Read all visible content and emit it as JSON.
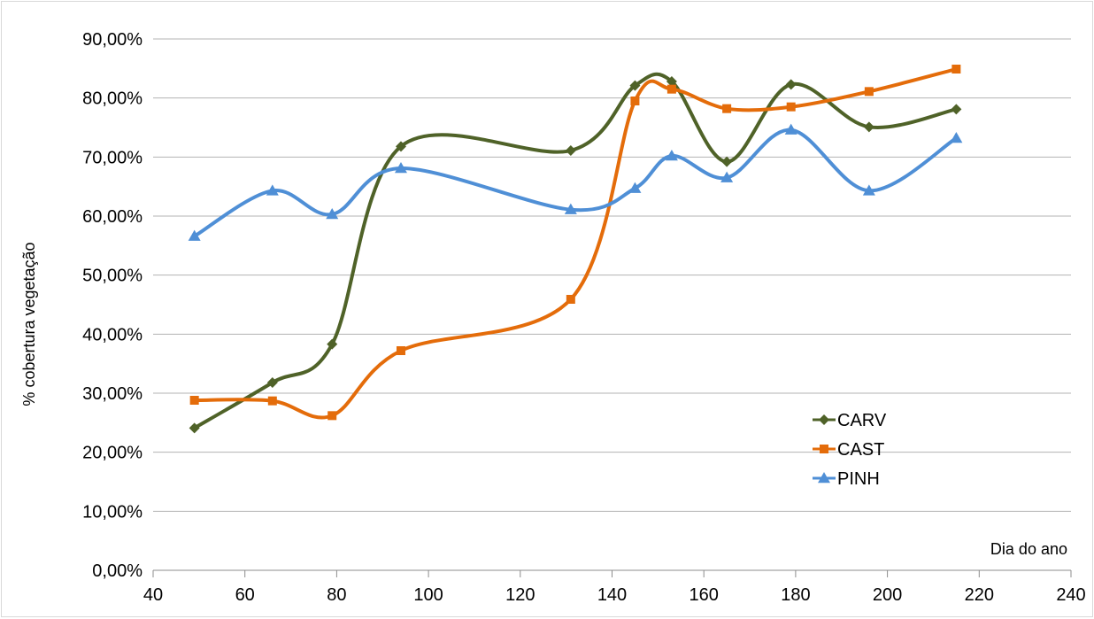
{
  "chart_data": {
    "type": "line",
    "smooth": true,
    "xlabel": "Dia do ano",
    "ylabel": "% cobertura vegetação",
    "xlim": [
      40,
      240
    ],
    "ylim": [
      0,
      0.9
    ],
    "x_ticks": [
      40,
      60,
      80,
      100,
      120,
      140,
      160,
      180,
      200,
      220,
      240
    ],
    "y_ticks": [
      0,
      0.1,
      0.2,
      0.3,
      0.4,
      0.5,
      0.6,
      0.7,
      0.8,
      0.9
    ],
    "y_tick_labels": [
      "0,00%",
      "10,00%",
      "20,00%",
      "30,00%",
      "40,00%",
      "50,00%",
      "60,00%",
      "70,00%",
      "80,00%",
      "90,00%"
    ],
    "x_tick_labels": [
      "40",
      "60",
      "80",
      "100",
      "120",
      "140",
      "160",
      "180",
      "200",
      "220",
      "240"
    ],
    "grid": "horizontal",
    "legend_position": "bottom-right",
    "series": [
      {
        "name": "CARV",
        "color": "#4f6228",
        "marker": "diamond",
        "points": [
          [
            49,
            0.241
          ],
          [
            66,
            0.318
          ],
          [
            79,
            0.383
          ],
          [
            94,
            0.718
          ],
          [
            131,
            0.711
          ],
          [
            145,
            0.821
          ],
          [
            153,
            0.828
          ],
          [
            165,
            0.692
          ],
          [
            179,
            0.823
          ],
          [
            196,
            0.751
          ],
          [
            215,
            0.781
          ]
        ]
      },
      {
        "name": "CAST",
        "color": "#e46c0a",
        "marker": "square",
        "points": [
          [
            49,
            0.288
          ],
          [
            66,
            0.287
          ],
          [
            79,
            0.262
          ],
          [
            94,
            0.372
          ],
          [
            131,
            0.459
          ],
          [
            145,
            0.795
          ],
          [
            153,
            0.815
          ],
          [
            165,
            0.782
          ],
          [
            179,
            0.785
          ],
          [
            196,
            0.811
          ],
          [
            215,
            0.849
          ]
        ]
      },
      {
        "name": "PINH",
        "color": "#4f8fd6",
        "marker": "triangle",
        "points": [
          [
            49,
            0.566
          ],
          [
            66,
            0.643
          ],
          [
            79,
            0.603
          ],
          [
            94,
            0.681
          ],
          [
            131,
            0.611
          ],
          [
            145,
            0.647
          ],
          [
            153,
            0.702
          ],
          [
            165,
            0.665
          ],
          [
            179,
            0.746
          ],
          [
            196,
            0.643
          ],
          [
            215,
            0.732
          ]
        ]
      }
    ]
  }
}
